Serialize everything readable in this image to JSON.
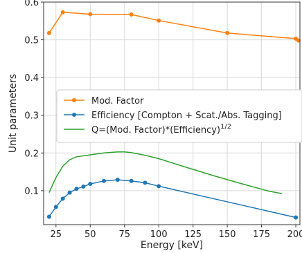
{
  "chart_data": {
    "type": "line",
    "xlabel": "Energy [keV]",
    "ylabel": "Unit parameters",
    "xlim": [
      16,
      203
    ],
    "ylim": [
      0.01,
      0.6
    ],
    "xticks": [
      25,
      50,
      75,
      100,
      125,
      150,
      175,
      200
    ],
    "yticks": [
      0.1,
      0.2,
      0.3,
      0.4,
      0.5,
      0.6
    ],
    "xtick_labels": [
      "25",
      "50",
      "75",
      "100",
      "125",
      "150",
      "175",
      "200"
    ],
    "ytick_labels": [
      "0.1",
      "0.2",
      "0.3",
      "0.4",
      "0.5",
      "0.6"
    ],
    "grid": true,
    "legend_position": "center",
    "series": [
      {
        "name": "Mod. Factor",
        "color": "#ff7f0e",
        "markers": true,
        "x": [
          20,
          30,
          50,
          80,
          100,
          150,
          200,
          202
        ],
        "y": [
          0.518,
          0.573,
          0.568,
          0.567,
          0.551,
          0.518,
          0.503,
          0.498
        ]
      },
      {
        "name": "Efficiency [Compton + Scat./Abs. Tagging]",
        "color": "#1f77b4",
        "markers": true,
        "x": [
          20,
          25,
          30,
          35,
          40,
          45,
          50,
          60,
          70,
          80,
          90,
          100,
          200
        ],
        "y": [
          0.031,
          0.057,
          0.079,
          0.095,
          0.105,
          0.111,
          0.118,
          0.126,
          0.129,
          0.126,
          0.121,
          0.112,
          0.029
        ]
      },
      {
        "name_prefix": "Q=(Mod. Factor)*(Efficiency)",
        "name_superscript": "1/2",
        "color": "#2ca02c",
        "markers": false,
        "x": [
          20,
          25,
          30,
          35,
          40,
          50,
          60,
          70,
          75,
          80,
          90,
          100,
          120,
          140,
          160,
          180,
          190
        ],
        "y": [
          0.095,
          0.135,
          0.165,
          0.182,
          0.19,
          0.195,
          0.2,
          0.203,
          0.203,
          0.201,
          0.194,
          0.185,
          0.162,
          0.14,
          0.119,
          0.099,
          0.092
        ]
      }
    ]
  }
}
